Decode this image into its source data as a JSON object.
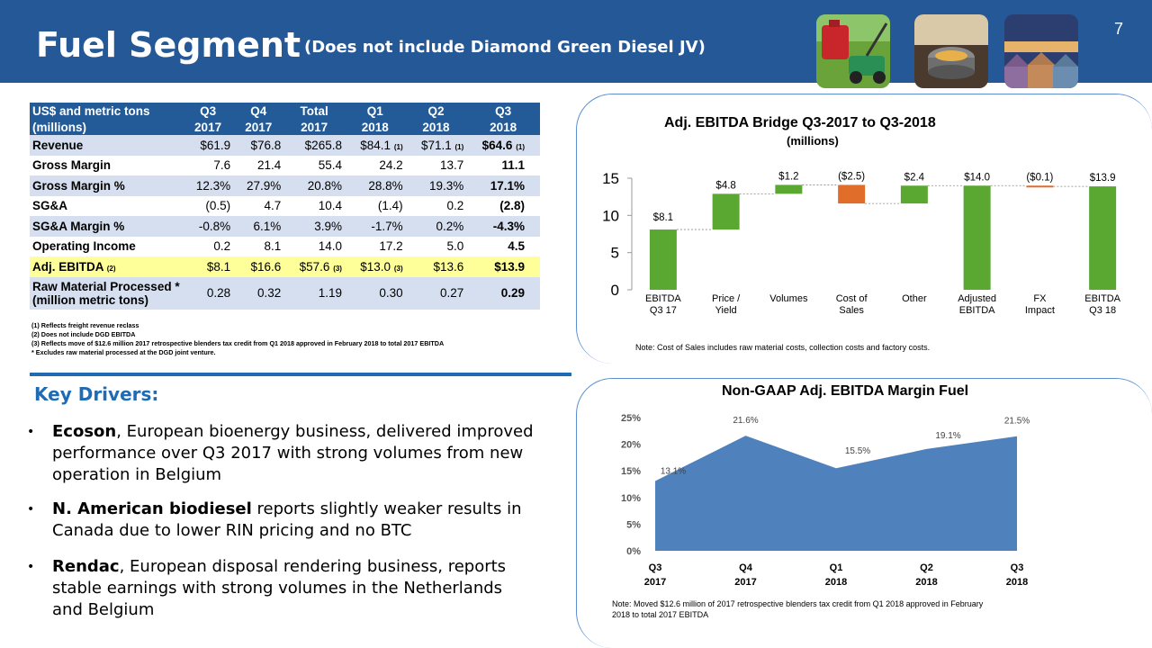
{
  "header": {
    "title": "Fuel Segment",
    "subtitle": "(Does not include Diamond Green Diesel JV)",
    "page_number": "7",
    "photos": [
      "gas-can-lawnmower-photo",
      "cooking-pot-photo",
      "houses-photo"
    ]
  },
  "table": {
    "header_row1": [
      "US$ and metric tons",
      "Q3",
      "Q4",
      "Total",
      "Q1",
      "Q2",
      "Q3"
    ],
    "header_row2": [
      "(millions)",
      "2017",
      "2017",
      "2017",
      "2018",
      "2018",
      "2018"
    ],
    "rows": [
      {
        "label": "Revenue",
        "values": [
          "$61.9",
          "$76.8",
          "$265.8",
          "$84.1",
          "$71.1",
          "$64.6"
        ],
        "notes": [
          "",
          "",
          "",
          "(1)",
          "(1)",
          "(1)"
        ]
      },
      {
        "label": "Gross Margin",
        "values": [
          "7.6",
          "21.4",
          "55.4",
          "24.2",
          "13.7",
          "11.1"
        ],
        "notes": [
          "",
          "",
          "",
          "",
          "",
          ""
        ]
      },
      {
        "label": "Gross Margin %",
        "values": [
          "12.3%",
          "27.9%",
          "20.8%",
          "28.8%",
          "19.3%",
          "17.1%"
        ],
        "notes": [
          "",
          "",
          "",
          "",
          "",
          ""
        ]
      },
      {
        "label": "SG&A",
        "values": [
          "(0.5)",
          "4.7",
          "10.4",
          "(1.4)",
          "0.2",
          "(2.8)"
        ],
        "notes": [
          "",
          "",
          "",
          "",
          "",
          ""
        ]
      },
      {
        "label": "SG&A Margin %",
        "values": [
          "-0.8%",
          "6.1%",
          "3.9%",
          "-1.7%",
          "0.2%",
          "-4.3%"
        ],
        "notes": [
          "",
          "",
          "",
          "",
          "",
          ""
        ]
      },
      {
        "label": "Operating Income",
        "values": [
          "0.2",
          "8.1",
          "14.0",
          "17.2",
          "5.0",
          "4.5"
        ],
        "notes": [
          "",
          "",
          "",
          "",
          "",
          ""
        ]
      },
      {
        "label": "Adj. EBITDA",
        "label_note": "(2)",
        "values": [
          "$8.1",
          "$16.6",
          "$57.6",
          "$13.0",
          "$13.6",
          "$13.9"
        ],
        "notes": [
          "",
          "",
          "(3)",
          "(3)",
          "",
          ""
        ]
      },
      {
        "label": "Raw Material Processed *",
        "label2": "(million metric tons)",
        "values": [
          "0.28",
          "0.32",
          "1.19",
          "0.30",
          "0.27",
          "0.29"
        ],
        "notes": [
          "",
          "",
          "",
          "",
          "",
          ""
        ]
      }
    ],
    "footnotes": [
      "(1) Reflects freight revenue reclass",
      "(2) Does not include DGD EBITDA",
      "(3) Reflects move of $12.6 million 2017 retrospective blenders tax credit from Q1 2018 approved in February 2018 to total 2017 EBITDA",
      "* Excludes raw material processed at the DGD joint venture."
    ]
  },
  "key_drivers": {
    "title": "Key Drivers:",
    "bullets": [
      {
        "bold": "Ecoson",
        "line1_rest": ", European bioenergy business, delivered improved",
        "line2": "performance over Q3 2017 with strong volumes from new",
        "line3": "operation in Belgium"
      },
      {
        "bold": "N. American biodiesel",
        "line1_rest": " reports slightly weaker results in",
        "line2": "Canada due to lower RIN pricing and no BTC",
        "line3": ""
      },
      {
        "bold": "Rendac",
        "line1_rest": ", European disposal rendering business, reports",
        "line2": "stable earnings with strong volumes in the Netherlands",
        "line3": "and Belgium"
      }
    ]
  },
  "bridge_chart": {
    "title": "Adj. EBITDA Bridge Q3-2017 to Q3-2018",
    "subtitle": "(millions)",
    "note": "Note: Cost of Sales includes raw material costs, collection costs and factory costs."
  },
  "margin_chart": {
    "title": "Non-GAAP Adj. EBITDA Margin Fuel",
    "note_line1": "Note: Moved $12.6 million of 2017 retrospective blenders tax credit from Q1 2018 approved in February",
    "note_line2": "2018 to total 2017 EBITDA"
  },
  "chart_data": [
    {
      "type": "bar",
      "subtype": "waterfall",
      "title": "Adj. EBITDA Bridge Q3-2017 to Q3-2018",
      "subtitle": "(millions)",
      "categories": [
        [
          "EBITDA",
          "Q3 17"
        ],
        [
          "Price /",
          "Yield"
        ],
        [
          "Volumes",
          ""
        ],
        [
          "Cost of",
          "Sales"
        ],
        [
          "Other",
          ""
        ],
        [
          "Adjusted",
          "EBITDA"
        ],
        [
          "FX",
          "Impact"
        ],
        [
          "EBITDA",
          "Q3 18"
        ]
      ],
      "values": [
        8.1,
        4.8,
        1.2,
        -2.5,
        2.4,
        14.0,
        -0.1,
        13.9
      ],
      "kinds": [
        "total",
        "delta",
        "delta",
        "delta",
        "delta",
        "total",
        "delta",
        "total"
      ],
      "labels": [
        "$8.1",
        "$4.8",
        "$1.2",
        "($2.5)",
        "$2.4",
        "$14.0",
        "($0.1)",
        "$13.9"
      ],
      "colors": {
        "positive": "#5aa832",
        "negative": "#e06e2a"
      },
      "yticks": [
        "0",
        "5",
        "10",
        "15"
      ],
      "ylim": [
        0,
        15
      ]
    },
    {
      "type": "area",
      "title": "Non-GAAP Adj. EBITDA Margin Fuel",
      "categories": [
        [
          "Q3",
          "2017"
        ],
        [
          "Q4",
          "2017"
        ],
        [
          "Q1",
          "2018"
        ],
        [
          "Q2",
          "2018"
        ],
        [
          "Q3",
          "2018"
        ]
      ],
      "values": [
        13.1,
        21.6,
        15.5,
        19.1,
        21.5
      ],
      "labels": [
        "13.1%",
        "21.6%",
        "15.5%",
        "19.1%",
        "21.5%"
      ],
      "yticks": [
        "0%",
        "5%",
        "10%",
        "15%",
        "20%",
        "25%"
      ],
      "ylim": [
        0,
        25
      ],
      "color": "#4f81bd"
    }
  ]
}
